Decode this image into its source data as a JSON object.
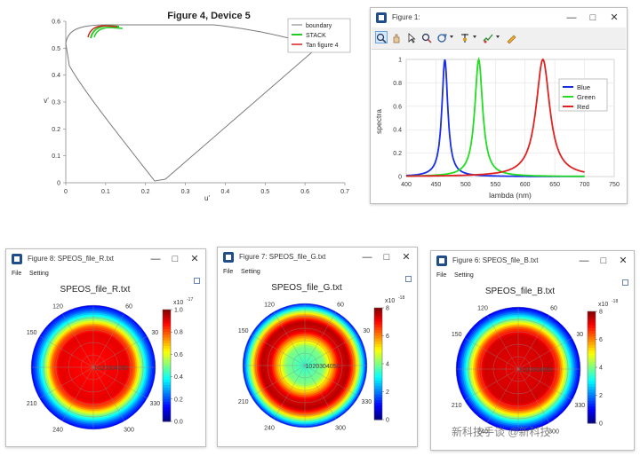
{
  "colors": {
    "blue": "#1a2ee6",
    "green": "#22dd22",
    "red": "#e02222",
    "boundary": "#7a7a7a",
    "winicon": "#1f4e8a"
  },
  "top_left_chart": {
    "title": "Figure 4,  Device 5",
    "xlabel": "u'",
    "ylabel": "v'",
    "x_ticks": [
      "0",
      "0.1",
      "0.2",
      "0.3",
      "0.4",
      "0.5",
      "0.6",
      "0.7"
    ],
    "y_ticks": [
      "0",
      "0.1",
      "0.2",
      "0.3",
      "0.4",
      "0.5",
      "0.6"
    ],
    "legend": [
      "boundary",
      "STACK",
      "Tan figure 4"
    ]
  },
  "figure1": {
    "window_title": "Figure 1:",
    "controls": {
      "minimize": "—",
      "maximize": "□",
      "close": "✕"
    },
    "toolbar_icons": [
      "zoom-in-icon",
      "pan-hand-icon",
      "pointer-icon",
      "zoom-out-icon",
      "rotate-icon",
      "data-cursor-icon",
      "brush-icon",
      "edit-plot-icon"
    ],
    "chart_data": {
      "type": "line",
      "xlabel": "lambda (nm)",
      "ylabel": "spectra",
      "xlim": [
        400,
        750
      ],
      "ylim": [
        0,
        1
      ],
      "x_ticks": [
        "400",
        "450",
        "500",
        "550",
        "600",
        "650",
        "700",
        "750"
      ],
      "y_ticks": [
        "0",
        "0.2",
        "0.4",
        "0.6",
        "0.8",
        "1"
      ],
      "legend_position": "top-right",
      "series": [
        {
          "name": "Blue",
          "peak_nm": 465,
          "width_nm": 6,
          "peak": 1.0
        },
        {
          "name": "Green",
          "peak_nm": 522,
          "width_nm": 8,
          "peak": 1.0
        },
        {
          "name": "Red",
          "peak_nm": 630,
          "width_nm": 14,
          "peak": 1.0
        }
      ]
    }
  },
  "polar_windows": [
    {
      "key": "R",
      "window_title": "Figure 8: SPEOS_file_R.txt",
      "menu": [
        "File",
        "Setting"
      ],
      "title": "SPEOS_file_R.txt",
      "cb_exponent": "x10",
      "cb_exp_sup": "-17",
      "cb_ticks": [
        "1.0",
        "0.8",
        "0.6",
        "0.4",
        "0.2",
        "0.0"
      ],
      "angle_labels": [
        "120",
        "60",
        "150",
        "30",
        "210",
        "330",
        "240",
        "300"
      ],
      "radial_labels": "1020304050"
    },
    {
      "key": "G",
      "window_title": "Figure 7: SPEOS_file_G.txt",
      "menu": [
        "File",
        "Setting"
      ],
      "title": "SPEOS_file_G.txt",
      "cb_exponent": "x10",
      "cb_exp_sup": "-18",
      "cb_ticks": [
        "8",
        "6",
        "4",
        "2",
        "0"
      ],
      "angle_labels": [
        "120",
        "60",
        "150",
        "30",
        "210",
        "330",
        "240",
        "300"
      ],
      "radial_labels": "1020304050"
    },
    {
      "key": "B",
      "window_title": "Figure 6: SPEOS_file_B.txt",
      "menu": [
        "File",
        "Setting"
      ],
      "title": "SPEOS_file_B.txt",
      "cb_exponent": "x10",
      "cb_exp_sup": "-18",
      "cb_ticks": [
        "8",
        "6",
        "4",
        "2",
        "0"
      ],
      "angle_labels": [
        "120",
        "60",
        "150",
        "30",
        "210",
        "330",
        "240",
        "300"
      ],
      "radial_labels": "1020304050"
    }
  ],
  "watermark": "新科技手谈 @新科技"
}
